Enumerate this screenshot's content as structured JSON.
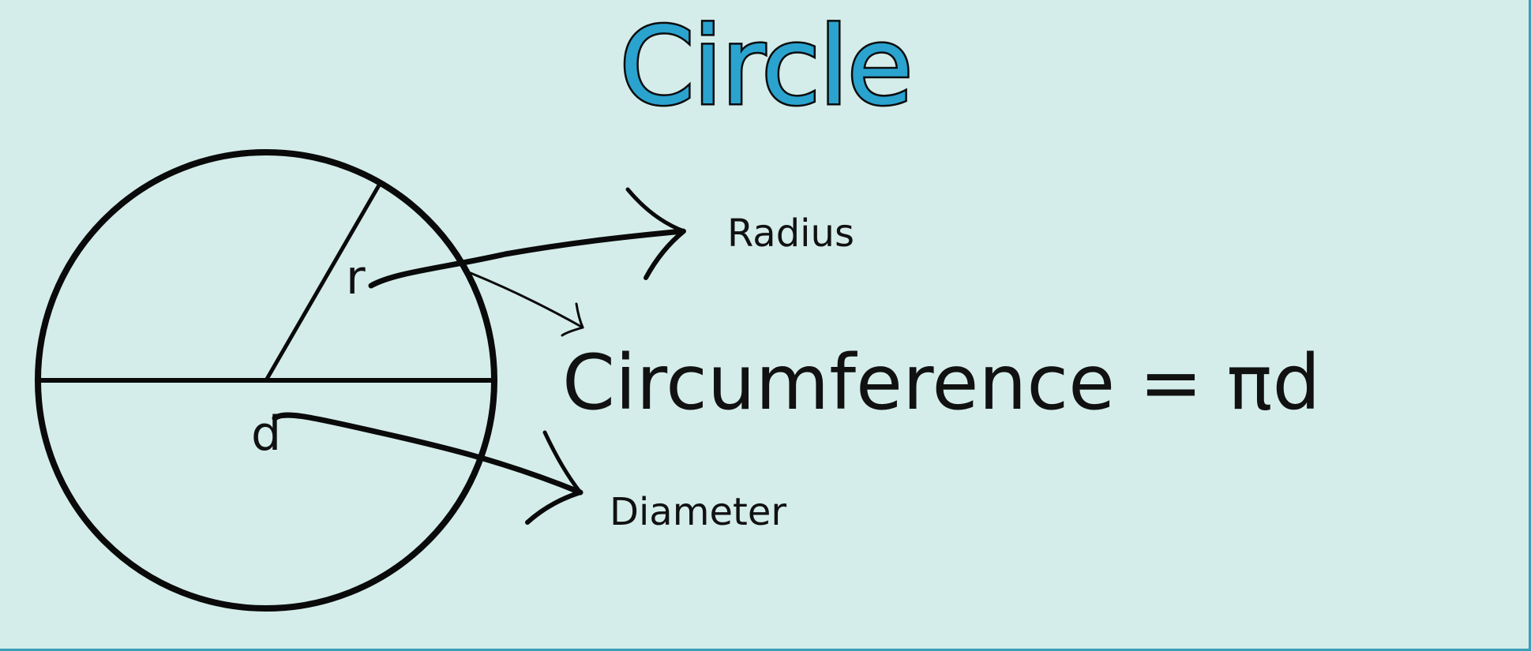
{
  "title": "Circle",
  "labels": {
    "radius_symbol": "r",
    "diameter_symbol": "d",
    "radius": "Radius",
    "diameter": "Diameter",
    "formula": "Circumference = πd"
  },
  "colors": {
    "background": "#d4edea",
    "title_fill": "#2aa3cf",
    "ink": "#0a0a0a",
    "frame": "#3a9fb8"
  }
}
